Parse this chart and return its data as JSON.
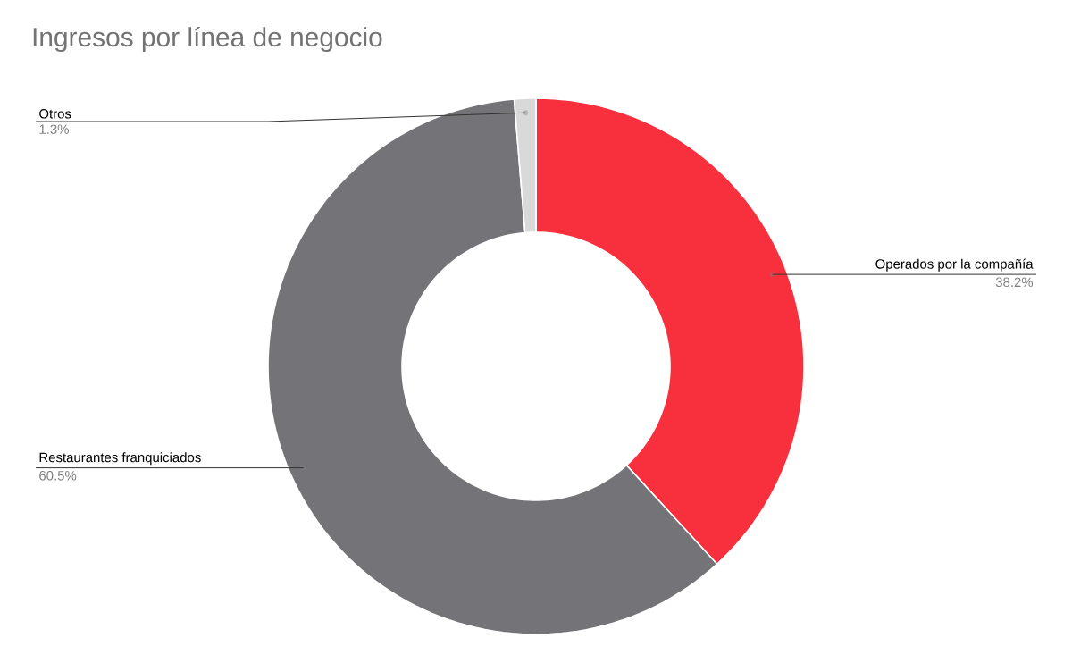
{
  "chart_data": {
    "type": "donut",
    "title": "Ingresos por línea de negocio",
    "categories": [
      "Operados por la compañía",
      "Restaurantes franquiciados",
      "Otros"
    ],
    "values": [
      38.2,
      60.5,
      1.3
    ],
    "colors": [
      "#f8303d",
      "#747377",
      "#d9d9d9"
    ],
    "value_labels": [
      "38.2%",
      "60.5%",
      "1.3%"
    ]
  }
}
